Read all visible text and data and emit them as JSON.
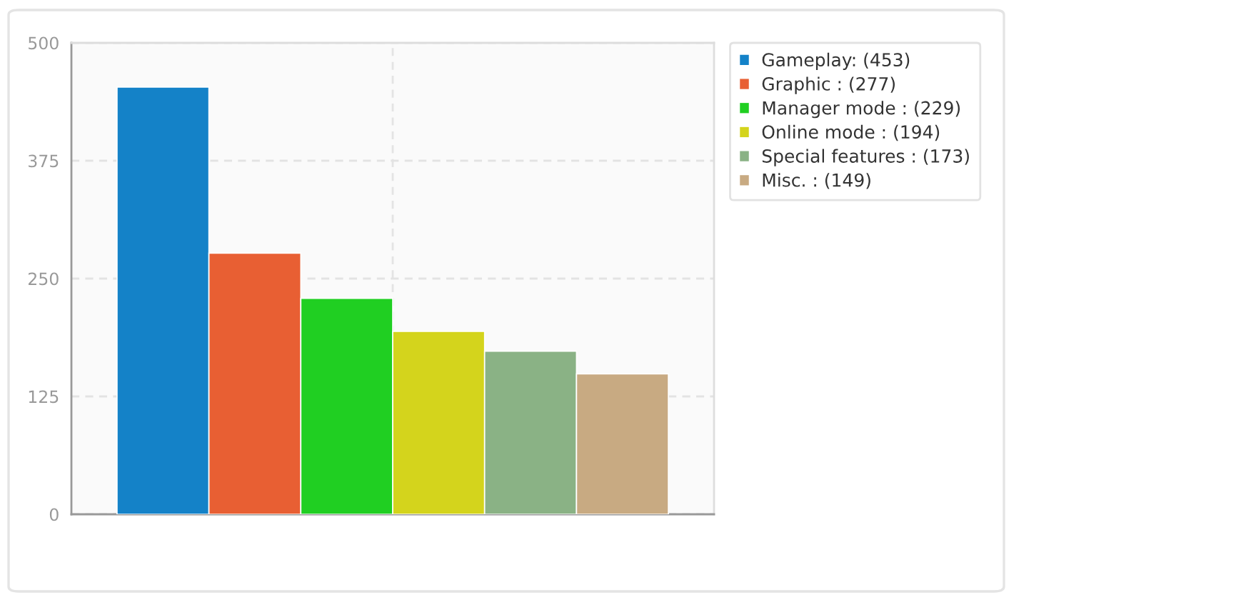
{
  "chart_data": {
    "type": "bar",
    "categories": [
      null
    ],
    "series": [
      {
        "name": "Gameplay: (453)",
        "color": "#1482c8",
        "values": [
          453
        ]
      },
      {
        "name": "Graphic : (277)",
        "color": "#e85f33",
        "values": [
          277
        ]
      },
      {
        "name": "Manager mode : (229)",
        "color": "#20cf22",
        "values": [
          229
        ]
      },
      {
        "name": "Online mode : (194)",
        "color": "#d4d41c",
        "values": [
          194
        ]
      },
      {
        "name": "Special features : (173)",
        "color": "#8ab285",
        "values": [
          173
        ]
      },
      {
        "name": "Misc. : (149)",
        "color": "#c8aa82",
        "values": [
          149
        ]
      }
    ],
    "ylim": [
      0,
      500
    ],
    "yticks": [
      0,
      125,
      250,
      375,
      500
    ],
    "grid": true,
    "legend": "top right",
    "tick_labels": "y"
  }
}
